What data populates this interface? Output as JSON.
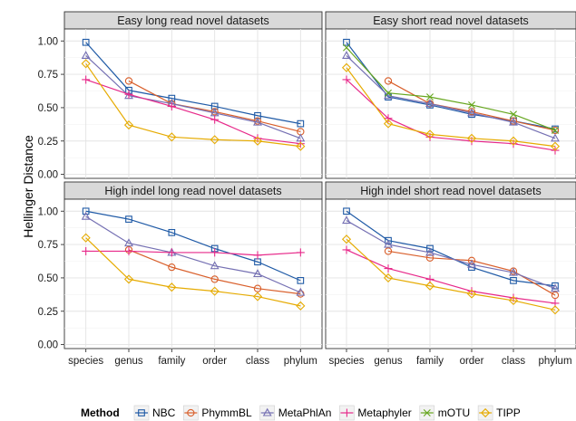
{
  "chart_data": {
    "type": "line",
    "ylabel": "Hellinger Distance",
    "x_categories": [
      "species",
      "genus",
      "family",
      "order",
      "class",
      "phylum"
    ],
    "y_ticks": [
      "1.00",
      "0.75",
      "0.50",
      "0.25",
      "0.00"
    ],
    "y_tick_values": [
      1.0,
      0.75,
      0.5,
      0.25,
      0.0
    ],
    "ylim": [
      -0.03,
      1.09
    ],
    "grid": true,
    "legend": {
      "title": "Method",
      "position": "bottom",
      "entries": [
        "NBC",
        "PhymmBL",
        "MetaPhlAn",
        "Metaphyler",
        "mOTU",
        "TIPP"
      ]
    },
    "colors": {
      "NBC": "#1f5aa6",
      "PhymmBL": "#d95f2b",
      "MetaPhlAn": "#7570b3",
      "Metaphyler": "#e7298a",
      "mOTU": "#66a61e",
      "TIPP": "#e6ab02"
    },
    "markers": {
      "NBC": "square",
      "PhymmBL": "circle",
      "MetaPhlAn": "triangle",
      "Metaphyler": "plus",
      "mOTU": "cross",
      "TIPP": "diamond"
    },
    "panels": [
      {
        "title": "Easy long read novel datasets",
        "series": [
          {
            "name": "NBC",
            "values": [
              0.99,
              0.63,
              0.57,
              0.51,
              0.44,
              0.38
            ]
          },
          {
            "name": "PhymmBL",
            "values": [
              null,
              0.7,
              0.53,
              0.47,
              0.4,
              0.32
            ]
          },
          {
            "name": "MetaPhlAn",
            "values": [
              0.89,
              0.59,
              0.53,
              0.46,
              0.39,
              0.27
            ]
          },
          {
            "name": "Metaphyler",
            "values": [
              0.71,
              0.6,
              0.51,
              0.41,
              0.27,
              0.23
            ]
          },
          {
            "name": "TIPP",
            "values": [
              0.83,
              0.37,
              0.28,
              0.26,
              0.25,
              0.21
            ]
          }
        ]
      },
      {
        "title": "Easy short read novel datasets",
        "series": [
          {
            "name": "NBC",
            "values": [
              0.99,
              0.58,
              0.52,
              0.45,
              0.4,
              0.34
            ]
          },
          {
            "name": "PhymmBL",
            "values": [
              null,
              0.7,
              0.53,
              0.47,
              0.4,
              0.33
            ]
          },
          {
            "name": "MetaPhlAn",
            "values": [
              0.89,
              0.59,
              0.53,
              0.46,
              0.39,
              0.27
            ]
          },
          {
            "name": "Metaphyler",
            "values": [
              0.71,
              0.42,
              0.28,
              0.25,
              0.23,
              0.18
            ]
          },
          {
            "name": "mOTU",
            "values": [
              0.95,
              0.61,
              0.58,
              0.52,
              0.45,
              0.33
            ]
          },
          {
            "name": "TIPP",
            "values": [
              0.8,
              0.38,
              0.3,
              0.27,
              0.25,
              0.21
            ]
          }
        ]
      },
      {
        "title": "High indel long read novel datasets",
        "series": [
          {
            "name": "NBC",
            "values": [
              1.0,
              0.94,
              0.84,
              0.72,
              0.62,
              0.48
            ]
          },
          {
            "name": "PhymmBL",
            "values": [
              null,
              0.71,
              0.58,
              0.49,
              0.42,
              0.38
            ]
          },
          {
            "name": "MetaPhlAn",
            "values": [
              0.96,
              0.76,
              0.69,
              0.59,
              0.53,
              0.39
            ]
          },
          {
            "name": "Metaphyler",
            "values": [
              0.7,
              0.7,
              0.69,
              0.69,
              0.67,
              0.69
            ]
          },
          {
            "name": "TIPP",
            "values": [
              0.8,
              0.49,
              0.43,
              0.4,
              0.36,
              0.29
            ]
          }
        ]
      },
      {
        "title": "High indel short read novel datasets",
        "series": [
          {
            "name": "NBC",
            "values": [
              1.0,
              0.78,
              0.72,
              0.58,
              0.48,
              0.44
            ]
          },
          {
            "name": "PhymmBL",
            "values": [
              null,
              0.7,
              0.65,
              0.63,
              0.55,
              0.37
            ]
          },
          {
            "name": "MetaPhlAn",
            "values": [
              0.93,
              0.75,
              0.69,
              0.6,
              0.54,
              0.42
            ]
          },
          {
            "name": "Metaphyler",
            "values": [
              0.71,
              0.57,
              0.49,
              0.4,
              0.35,
              0.31
            ]
          },
          {
            "name": "TIPP",
            "values": [
              0.79,
              0.5,
              0.44,
              0.38,
              0.33,
              0.26
            ]
          }
        ]
      }
    ]
  }
}
